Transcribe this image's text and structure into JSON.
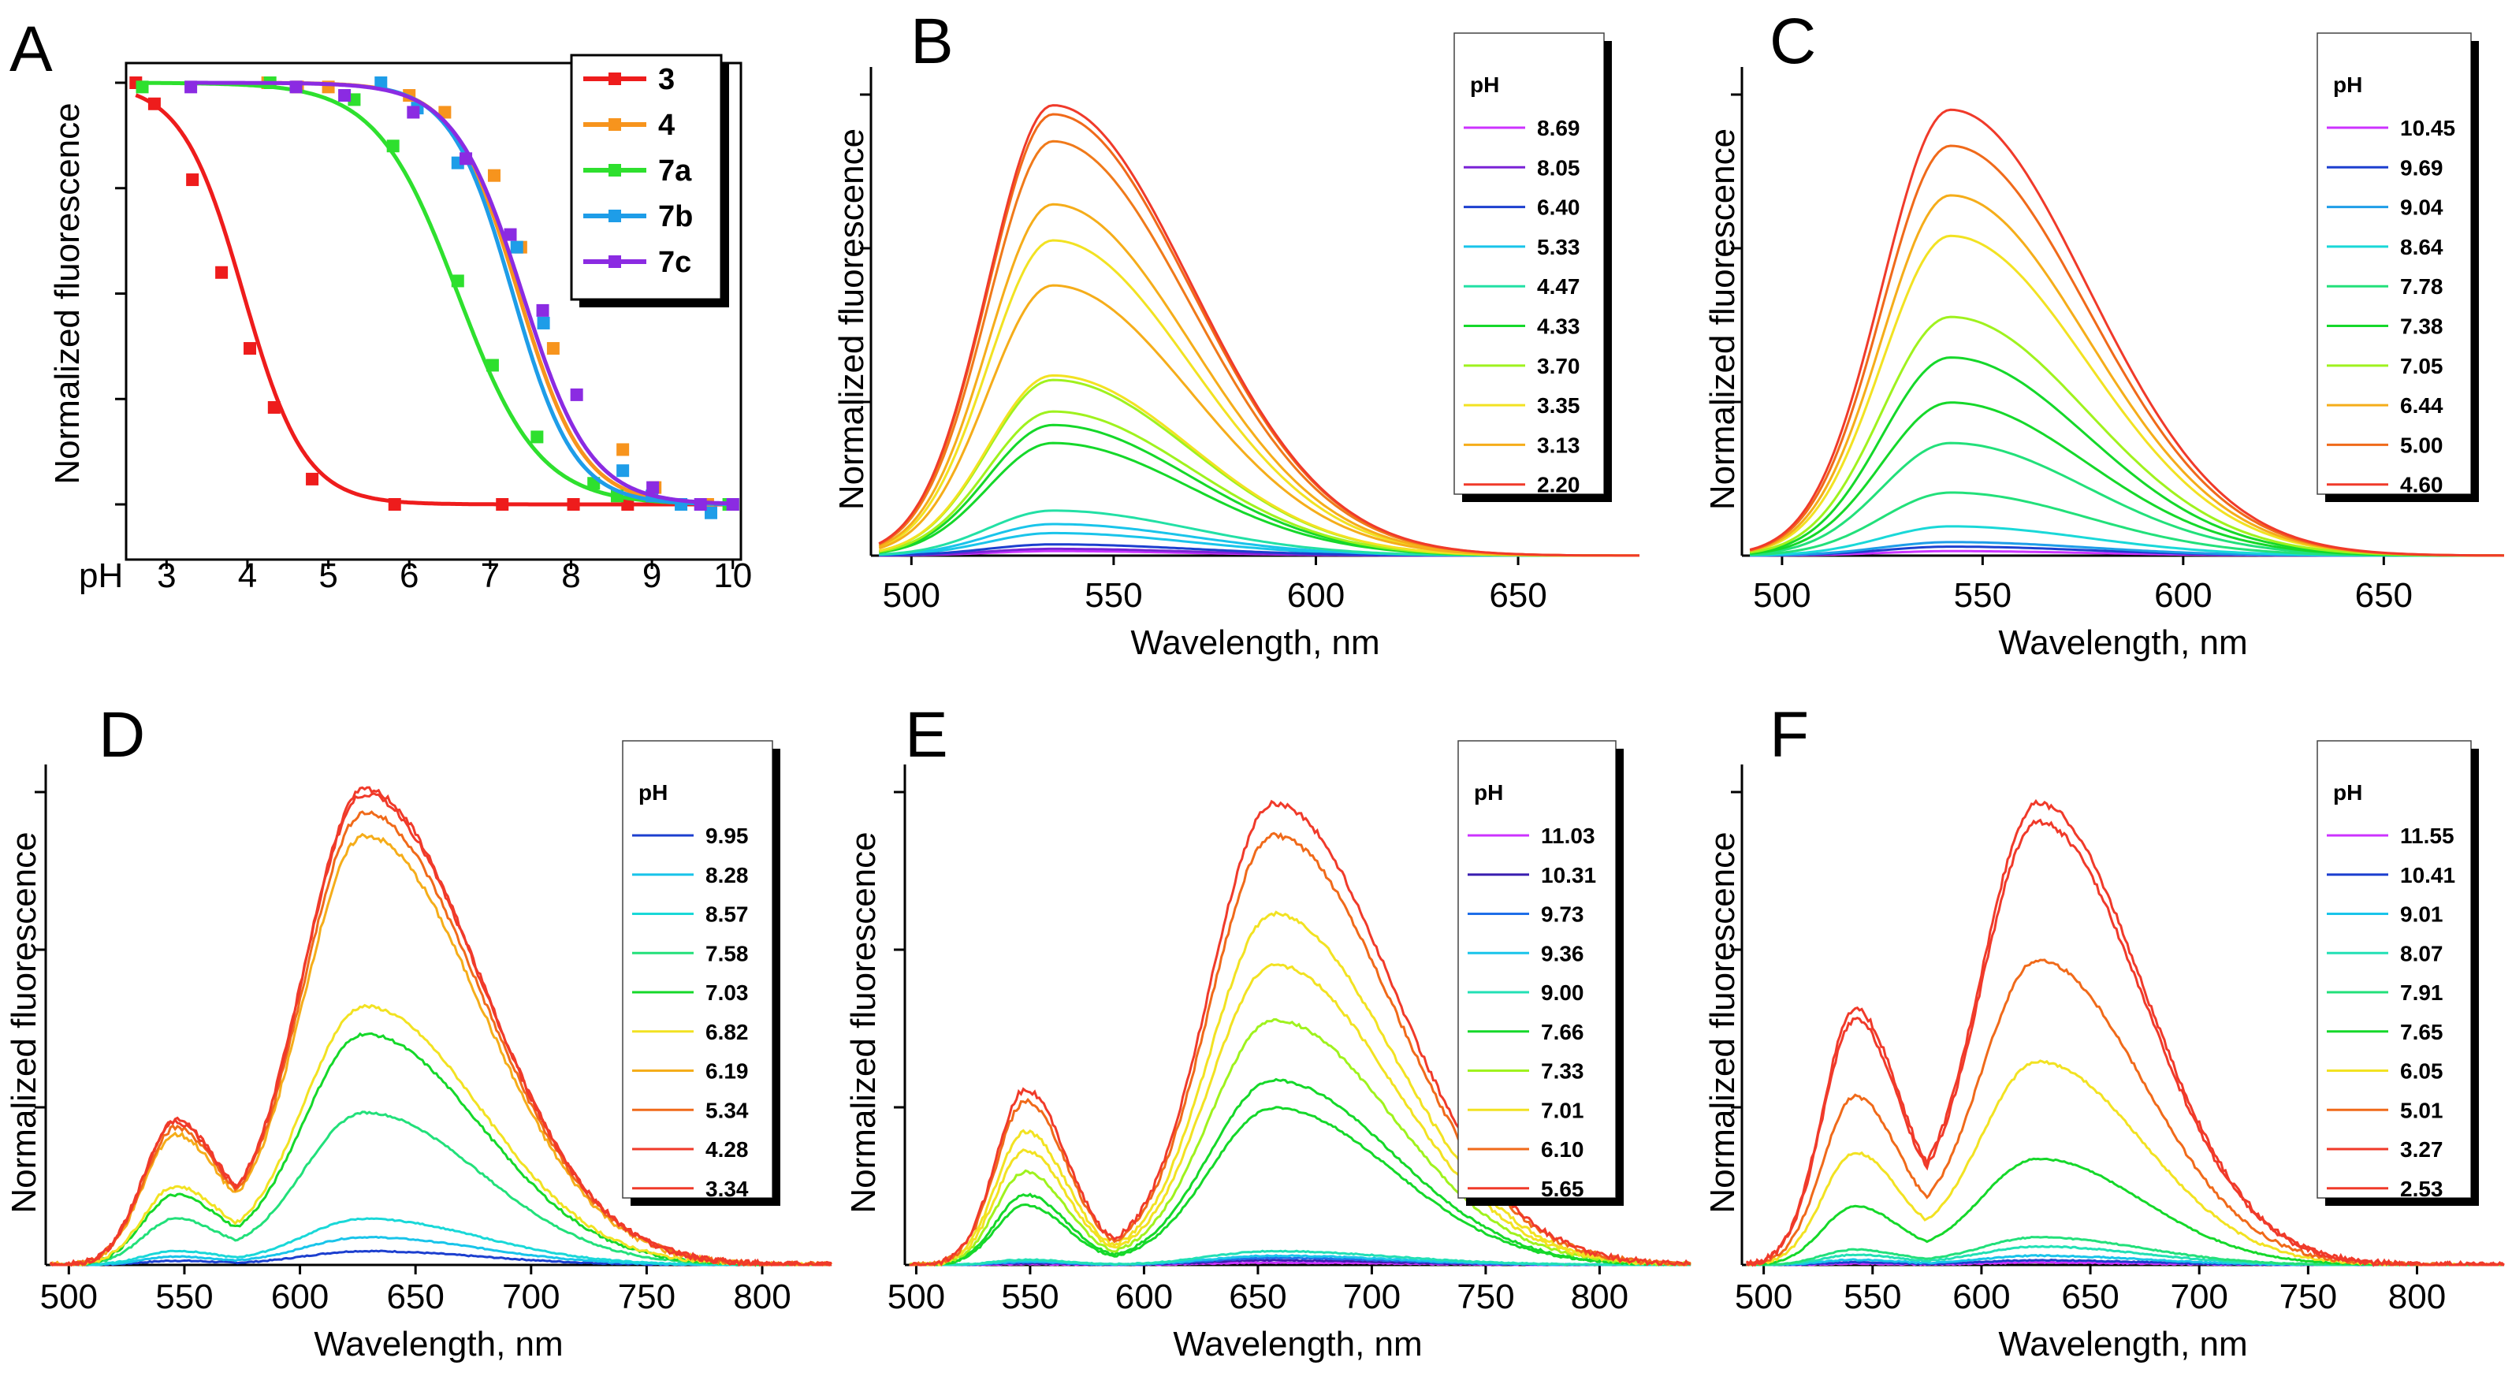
{
  "chart_data": [
    {
      "panel": "A",
      "type": "scatter",
      "fit": "sigmoid",
      "ylabel": "Normalized fluorescence",
      "xlabel": "pH",
      "xlim": [
        2.5,
        10.1
      ],
      "ylim": [
        0,
        1
      ],
      "grid": false,
      "legend_position": "top-right",
      "x_ticks": [
        "3",
        "4",
        "5",
        "6",
        "7",
        "8",
        "9",
        "10"
      ],
      "series": [
        {
          "name": "3",
          "color": "#ee1c1c",
          "pka": 3.95,
          "slope": 0.38,
          "points": [
            [
              2.62,
              1.0
            ],
            [
              2.85,
              0.95
            ],
            [
              3.32,
              0.77
            ],
            [
              3.68,
              0.55
            ],
            [
              4.03,
              0.37
            ],
            [
              4.33,
              0.23
            ],
            [
              4.8,
              0.06
            ],
            [
              5.82,
              0.0
            ],
            [
              7.15,
              0.0
            ],
            [
              8.03,
              0.0
            ],
            [
              8.7,
              0.0
            ]
          ]
        },
        {
          "name": "4",
          "color": "#f7941d",
          "pka": 7.35,
          "slope": 0.4,
          "points": [
            [
              4.25,
              1.0
            ],
            [
              4.62,
              0.99
            ],
            [
              5.0,
              0.99
            ],
            [
              6.0,
              0.97
            ],
            [
              6.44,
              0.93
            ],
            [
              7.05,
              0.78
            ],
            [
              7.38,
              0.61
            ],
            [
              7.78,
              0.37
            ],
            [
              8.64,
              0.13
            ],
            [
              9.04,
              0.04
            ],
            [
              9.69,
              0.0
            ],
            [
              10.0,
              0.0
            ]
          ]
        },
        {
          "name": "7a",
          "color": "#2ee02e",
          "pka": 6.6,
          "slope": 0.5,
          "points": [
            [
              2.7,
              0.99
            ],
            [
              4.28,
              1.0
            ],
            [
              5.32,
              0.96
            ],
            [
              5.8,
              0.85
            ],
            [
              6.6,
              0.53
            ],
            [
              7.03,
              0.33
            ],
            [
              7.58,
              0.16
            ],
            [
              8.28,
              0.05
            ],
            [
              8.57,
              0.02
            ],
            [
              9.95,
              0.0
            ]
          ]
        },
        {
          "name": "7b",
          "color": "#1e9de8",
          "pka": 7.28,
          "slope": 0.38,
          "points": [
            [
              5.65,
              1.0
            ],
            [
              6.1,
              0.94
            ],
            [
              6.6,
              0.81
            ],
            [
              7.33,
              0.61
            ],
            [
              7.66,
              0.43
            ],
            [
              8.64,
              0.08
            ],
            [
              9.0,
              0.02
            ],
            [
              9.36,
              0.0
            ],
            [
              9.73,
              -0.02
            ],
            [
              10.0,
              0.0
            ]
          ]
        },
        {
          "name": "7c",
          "color": "#8b2be2",
          "pka": 7.4,
          "slope": 0.42,
          "points": [
            [
              3.3,
              0.99
            ],
            [
              4.6,
              0.99
            ],
            [
              5.2,
              0.97
            ],
            [
              6.05,
              0.93
            ],
            [
              6.7,
              0.82
            ],
            [
              7.25,
              0.64
            ],
            [
              7.65,
              0.46
            ],
            [
              8.07,
              0.26
            ],
            [
              9.01,
              0.04
            ],
            [
              9.6,
              0.0
            ],
            [
              10.0,
              0.0
            ]
          ]
        }
      ]
    },
    {
      "panel": "B",
      "type": "line",
      "xlabel": "Wavelength, nm",
      "ylabel": "Normalized fluorescence",
      "xlim": [
        490,
        680
      ],
      "ylim": [
        0,
        1.05
      ],
      "grid": false,
      "x_ticks": [
        "500",
        "550",
        "600",
        "650"
      ],
      "legend_title": "pH",
      "legend_position": "top-right",
      "peak_shape": {
        "center": 535,
        "sigma_left": 16,
        "sigma_right": 34
      },
      "series": [
        {
          "name": "8.69",
          "color": "#cc33ff",
          "peak": 0.01
        },
        {
          "name": "8.05",
          "color": "#7a22d6",
          "peak": 0.015
        },
        {
          "name": "6.40",
          "color": "#1c3fcf",
          "peak": 0.025
        },
        {
          "name": "5.33",
          "color": "#19c4ea",
          "peak": 0.07
        },
        {
          "name": "4.47",
          "color": "#22e0a5",
          "peak": 0.1
        },
        {
          "name": "4.33",
          "color": "#15d82a",
          "peak": 0.25
        },
        {
          "name": "3.70",
          "color": "#9ff21e",
          "peak": 0.32
        },
        {
          "name": "3.35",
          "color": "#f2e222",
          "peak": 0.4
        },
        {
          "name": "3.13",
          "color": "#f5ad1a",
          "peak": 0.6
        },
        {
          "name": "2.20",
          "color": "#f03a2a",
          "peak": 1.0
        }
      ],
      "extra_curves": [
        {
          "color": "#19c4ea",
          "peak": 0.05
        },
        {
          "color": "#15d82a",
          "peak": 0.29
        },
        {
          "color": "#9ff21e",
          "peak": 0.39
        },
        {
          "color": "#f2e222",
          "peak": 0.7
        },
        {
          "color": "#f5ad1a",
          "peak": 0.78
        },
        {
          "color": "#f07a1a",
          "peak": 0.92
        },
        {
          "color": "#f06a1a",
          "peak": 0.98
        }
      ]
    },
    {
      "panel": "C",
      "type": "line",
      "xlabel": "Wavelength, nm",
      "ylabel": "Normalized fluorescence",
      "xlim": [
        490,
        680
      ],
      "ylim": [
        0,
        1.05
      ],
      "grid": false,
      "x_ticks": [
        "500",
        "550",
        "600",
        "650"
      ],
      "legend_title": "pH",
      "legend_position": "top-right",
      "peak_shape": {
        "center": 542,
        "sigma_left": 17,
        "sigma_right": 34
      },
      "series": [
        {
          "name": "10.45",
          "color": "#cc33ff",
          "peak": 0.01
        },
        {
          "name": "9.69",
          "color": "#1c3fcf",
          "peak": 0.02
        },
        {
          "name": "9.04",
          "color": "#1e9de8",
          "peak": 0.03
        },
        {
          "name": "8.64",
          "color": "#19d8d8",
          "peak": 0.065
        },
        {
          "name": "7.78",
          "color": "#22e07a",
          "peak": 0.14
        },
        {
          "name": "7.38",
          "color": "#15d82a",
          "peak": 0.34
        },
        {
          "name": "7.05",
          "color": "#9ff21e",
          "peak": 0.53
        },
        {
          "name": "6.44",
          "color": "#f5ad1a",
          "peak": 0.8
        },
        {
          "name": "5.00",
          "color": "#f06a1a",
          "peak": 0.91
        },
        {
          "name": "4.60",
          "color": "#f03a2a",
          "peak": 0.99
        }
      ],
      "extra_curves": [
        {
          "color": "#22e07a",
          "peak": 0.25
        },
        {
          "color": "#15d82a",
          "peak": 0.44
        },
        {
          "color": "#f2e222",
          "peak": 0.71
        }
      ]
    },
    {
      "panel": "D",
      "type": "line",
      "xlabel": "Wavelength, nm",
      "ylabel": "Normalized fluorescence",
      "xlim": [
        490,
        830
      ],
      "ylim": [
        0,
        1.05
      ],
      "grid": false,
      "x_ticks": [
        "500",
        "550",
        "600",
        "650",
        "700",
        "750",
        "800"
      ],
      "legend_title": "pH",
      "legend_position": "top-right",
      "peak_shape": {
        "c1": 546,
        "s1": 14,
        "c2": 628,
        "s2l": 27,
        "s2r": 50,
        "ratio": 0.3
      },
      "series": [
        {
          "name": "9.95",
          "color": "#1c3fcf",
          "peak": 0.03
        },
        {
          "name": "8.28",
          "color": "#19c4ea",
          "peak": 0.06
        },
        {
          "name": "8.57",
          "color": "#19d8d8",
          "peak": 0.1
        },
        {
          "name": "7.58",
          "color": "#22e07a",
          "peak": 0.33
        },
        {
          "name": "7.03",
          "color": "#15d82a",
          "peak": 0.5
        },
        {
          "name": "6.82",
          "color": "#f2e222",
          "peak": 0.56
        },
        {
          "name": "6.19",
          "color": "#f5ad1a",
          "peak": 0.93
        },
        {
          "name": "5.34",
          "color": "#f06a1a",
          "peak": 0.98
        },
        {
          "name": "4.28",
          "color": "#f03a2a",
          "peak": 1.02
        },
        {
          "name": "3.34",
          "color": "#f03a2a",
          "peak": 1.03
        }
      ]
    },
    {
      "panel": "E",
      "type": "line",
      "xlabel": "Wavelength, nm",
      "ylabel": "Normalized fluorescence",
      "xlim": [
        495,
        840
      ],
      "ylim": [
        0,
        1.05
      ],
      "grid": false,
      "x_ticks": [
        "500",
        "550",
        "600",
        "650",
        "700",
        "750",
        "800"
      ],
      "legend_title": "pH",
      "legend_position": "top-right",
      "peak_shape": {
        "c1": 548,
        "s1": 13,
        "c2": 657,
        "s2l": 28,
        "s2r": 52,
        "ratio": 0.38
      },
      "series": [
        {
          "name": "11.03",
          "color": "#cc33ff",
          "peak": 0.005
        },
        {
          "name": "10.31",
          "color": "#3a1fb0",
          "peak": 0.01
        },
        {
          "name": "9.73",
          "color": "#1e6ee8",
          "peak": 0.015
        },
        {
          "name": "9.36",
          "color": "#19c4ea",
          "peak": 0.02
        },
        {
          "name": "9.00",
          "color": "#22e0b5",
          "peak": 0.03
        },
        {
          "name": "7.66",
          "color": "#15d82a",
          "peak": 0.34
        },
        {
          "name": "7.33",
          "color": "#9ff21e",
          "peak": 0.53
        },
        {
          "name": "7.01",
          "color": "#f2e222",
          "peak": 0.65
        },
        {
          "name": "6.10",
          "color": "#f06a1a",
          "peak": 0.93
        },
        {
          "name": "5.65",
          "color": "#f03a2a",
          "peak": 1.0
        }
      ],
      "extra_curves": [
        {
          "color": "#15d82a",
          "peak": 0.4
        },
        {
          "color": "#f2e222",
          "peak": 0.76
        }
      ]
    },
    {
      "panel": "F",
      "type": "line",
      "xlabel": "Wavelength, nm",
      "ylabel": "Normalized fluorescence",
      "xlim": [
        490,
        840
      ],
      "ylim": [
        0,
        1.05
      ],
      "grid": false,
      "x_ticks": [
        "500",
        "550",
        "600",
        "650",
        "700",
        "750",
        "800"
      ],
      "legend_title": "pH",
      "legend_position": "top-right",
      "peak_shape": {
        "c1": 542,
        "s1": 15,
        "c2": 626,
        "s2l": 27,
        "s2r": 48,
        "ratio": 0.55
      },
      "series": [
        {
          "name": "11.55",
          "color": "#cc33ff",
          "peak": 0.005
        },
        {
          "name": "10.41",
          "color": "#1c3fcf",
          "peak": 0.01
        },
        {
          "name": "9.01",
          "color": "#19c4ea",
          "peak": 0.02
        },
        {
          "name": "8.07",
          "color": "#22e0b5",
          "peak": 0.04
        },
        {
          "name": "7.91",
          "color": "#22e07a",
          "peak": 0.06
        },
        {
          "name": "7.65",
          "color": "#15d82a",
          "peak": 0.23
        },
        {
          "name": "6.05",
          "color": "#f2e222",
          "peak": 0.44
        },
        {
          "name": "5.01",
          "color": "#f06a1a",
          "peak": 0.66
        },
        {
          "name": "3.27",
          "color": "#f03a2a",
          "peak": 0.96
        },
        {
          "name": "2.53",
          "color": "#f03a2a",
          "peak": 1.0
        }
      ]
    }
  ]
}
